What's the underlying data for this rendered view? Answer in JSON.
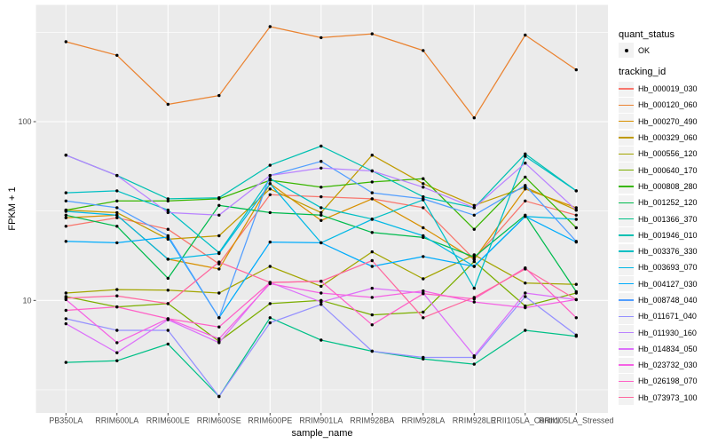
{
  "chart_data": {
    "type": "line",
    "title": "",
    "xlabel": "sample_name",
    "ylabel": "FPKM + 1",
    "y_scale": "log10",
    "y_breaks": [
      10,
      100
    ],
    "y_tick_labels": [
      "10",
      "100"
    ],
    "y_minor_breaks": [
      3.162,
      31.62,
      316.2
    ],
    "ylim": [
      2.4,
      430
    ],
    "grid": "on",
    "legend_position": "right",
    "point_color": "#000000",
    "categories": [
      "PB350LA",
      "RRIM600LA",
      "RRIM600LE",
      "RRIM600SE",
      "RRIM600PE",
      "RRIM901LA",
      "RRIM928BA",
      "RRIM928LA",
      "RRIM928LE",
      "RRII105LA_Control",
      "RRII105LA_Stressed"
    ],
    "series": [
      {
        "name": "Hb_000019_030",
        "color": "#F8766D",
        "values": [
          26,
          29,
          25,
          16,
          39,
          38,
          37,
          33,
          17,
          36,
          30
        ]
      },
      {
        "name": "Hb_000120_060",
        "color": "#EA8331",
        "values": [
          280,
          235,
          125,
          140,
          340,
          295,
          310,
          250,
          105,
          305,
          195
        ]
      },
      {
        "name": "Hb_000270_490",
        "color": "#D89000",
        "values": [
          29,
          30,
          17,
          15,
          45,
          28,
          37,
          25.5,
          17,
          42,
          33
        ]
      },
      {
        "name": "Hb_000329_060",
        "color": "#C09B00",
        "values": [
          32,
          31,
          22,
          23,
          42,
          31,
          65,
          45,
          34,
          43,
          32
        ]
      },
      {
        "name": "Hb_000556_120",
        "color": "#A3A500",
        "values": [
          11,
          11.5,
          11.4,
          11,
          15.5,
          12,
          18.7,
          13.2,
          18,
          12.5,
          12.3
        ]
      },
      {
        "name": "Hb_000640_170",
        "color": "#7CAE00",
        "values": [
          10.5,
          9.2,
          9.6,
          5.9,
          9.6,
          10,
          8.3,
          8.6,
          16.5,
          9.3,
          11
        ]
      },
      {
        "name": "Hb_000808_280",
        "color": "#39B600",
        "values": [
          32,
          36,
          36,
          37,
          47,
          43,
          46,
          48,
          25,
          49,
          25.5
        ]
      },
      {
        "name": "Hb_001252_120",
        "color": "#00BB4E",
        "values": [
          30,
          26,
          13.3,
          34,
          31,
          30,
          24,
          22.5,
          17.5,
          30,
          11.2
        ]
      },
      {
        "name": "Hb_001366_370",
        "color": "#00C087",
        "values": [
          4.5,
          4.6,
          5.7,
          2.9,
          8,
          6,
          5.2,
          4.7,
          4.4,
          6.8,
          6.3
        ]
      },
      {
        "name": "Hb_001946_010",
        "color": "#00C0B2",
        "values": [
          65,
          50,
          37,
          37.5,
          57,
          73,
          53,
          38,
          33,
          66,
          41
        ]
      },
      {
        "name": "Hb_003376_330",
        "color": "#00BFC4",
        "values": [
          40,
          41,
          32,
          18.5,
          48,
          33,
          28.5,
          36.5,
          11.7,
          64,
          41
        ]
      },
      {
        "name": "Hb_003693_070",
        "color": "#00B8E5",
        "values": [
          31.5,
          30,
          17,
          18.3,
          45,
          21,
          28.4,
          23,
          15.5,
          29.5,
          28.4
        ]
      },
      {
        "name": "Hb_004127_030",
        "color": "#00ACFC",
        "values": [
          21.4,
          21,
          22.6,
          8,
          21.2,
          21,
          15.5,
          17.6,
          15.5,
          29.5,
          21.2
        ]
      },
      {
        "name": "Hb_008748_040",
        "color": "#529EFF",
        "values": [
          36,
          33,
          23,
          8,
          50,
          60,
          40,
          37,
          30,
          44,
          21.4
        ]
      },
      {
        "name": "Hb_011671_040",
        "color": "#9590FF",
        "values": [
          7.9,
          6.8,
          6.8,
          2.9,
          7.5,
          9.5,
          5.2,
          4.8,
          4.8,
          10.5,
          6.4
        ]
      },
      {
        "name": "Hb_011930_160",
        "color": "#B983FF",
        "values": [
          65,
          50,
          31,
          30,
          50,
          55,
          53,
          43,
          33,
          58.6,
          32
        ]
      },
      {
        "name": "Hb_014834_050",
        "color": "#DC71FA",
        "values": [
          7.4,
          5.1,
          7.8,
          5.8,
          12.6,
          9.8,
          11.7,
          11,
          4.9,
          11,
          10.1
        ]
      },
      {
        "name": "Hb_023732_030",
        "color": "#F562E4",
        "values": [
          10.1,
          5.8,
          7.9,
          6.1,
          12.4,
          11,
          10.4,
          11.3,
          9.8,
          9.1,
          10.1
        ]
      },
      {
        "name": "Hb_026198_070",
        "color": "#FF61C7",
        "values": [
          8.8,
          9.2,
          7.9,
          7.1,
          12.6,
          12.8,
          7.3,
          10.9,
          10.2,
          15.2,
          8
        ]
      },
      {
        "name": "Hb_073973_100",
        "color": "#FF689F",
        "values": [
          10.3,
          10.6,
          9.6,
          16.4,
          12.6,
          12.8,
          16.7,
          8,
          10.4,
          15,
          10.1
        ]
      }
    ],
    "legend": {
      "quant_status_title": "quant_status",
      "quant_status_items": [
        {
          "label": "OK"
        }
      ],
      "tracking_id_title": "tracking_id"
    }
  },
  "style_colors": {
    "panel_bg": "#EBEBEB",
    "grid": "#FFFFFF",
    "legend_key_bg": "#F2F2F2",
    "tick_label": "#4D4D4D",
    "tick_mark": "#333333"
  }
}
